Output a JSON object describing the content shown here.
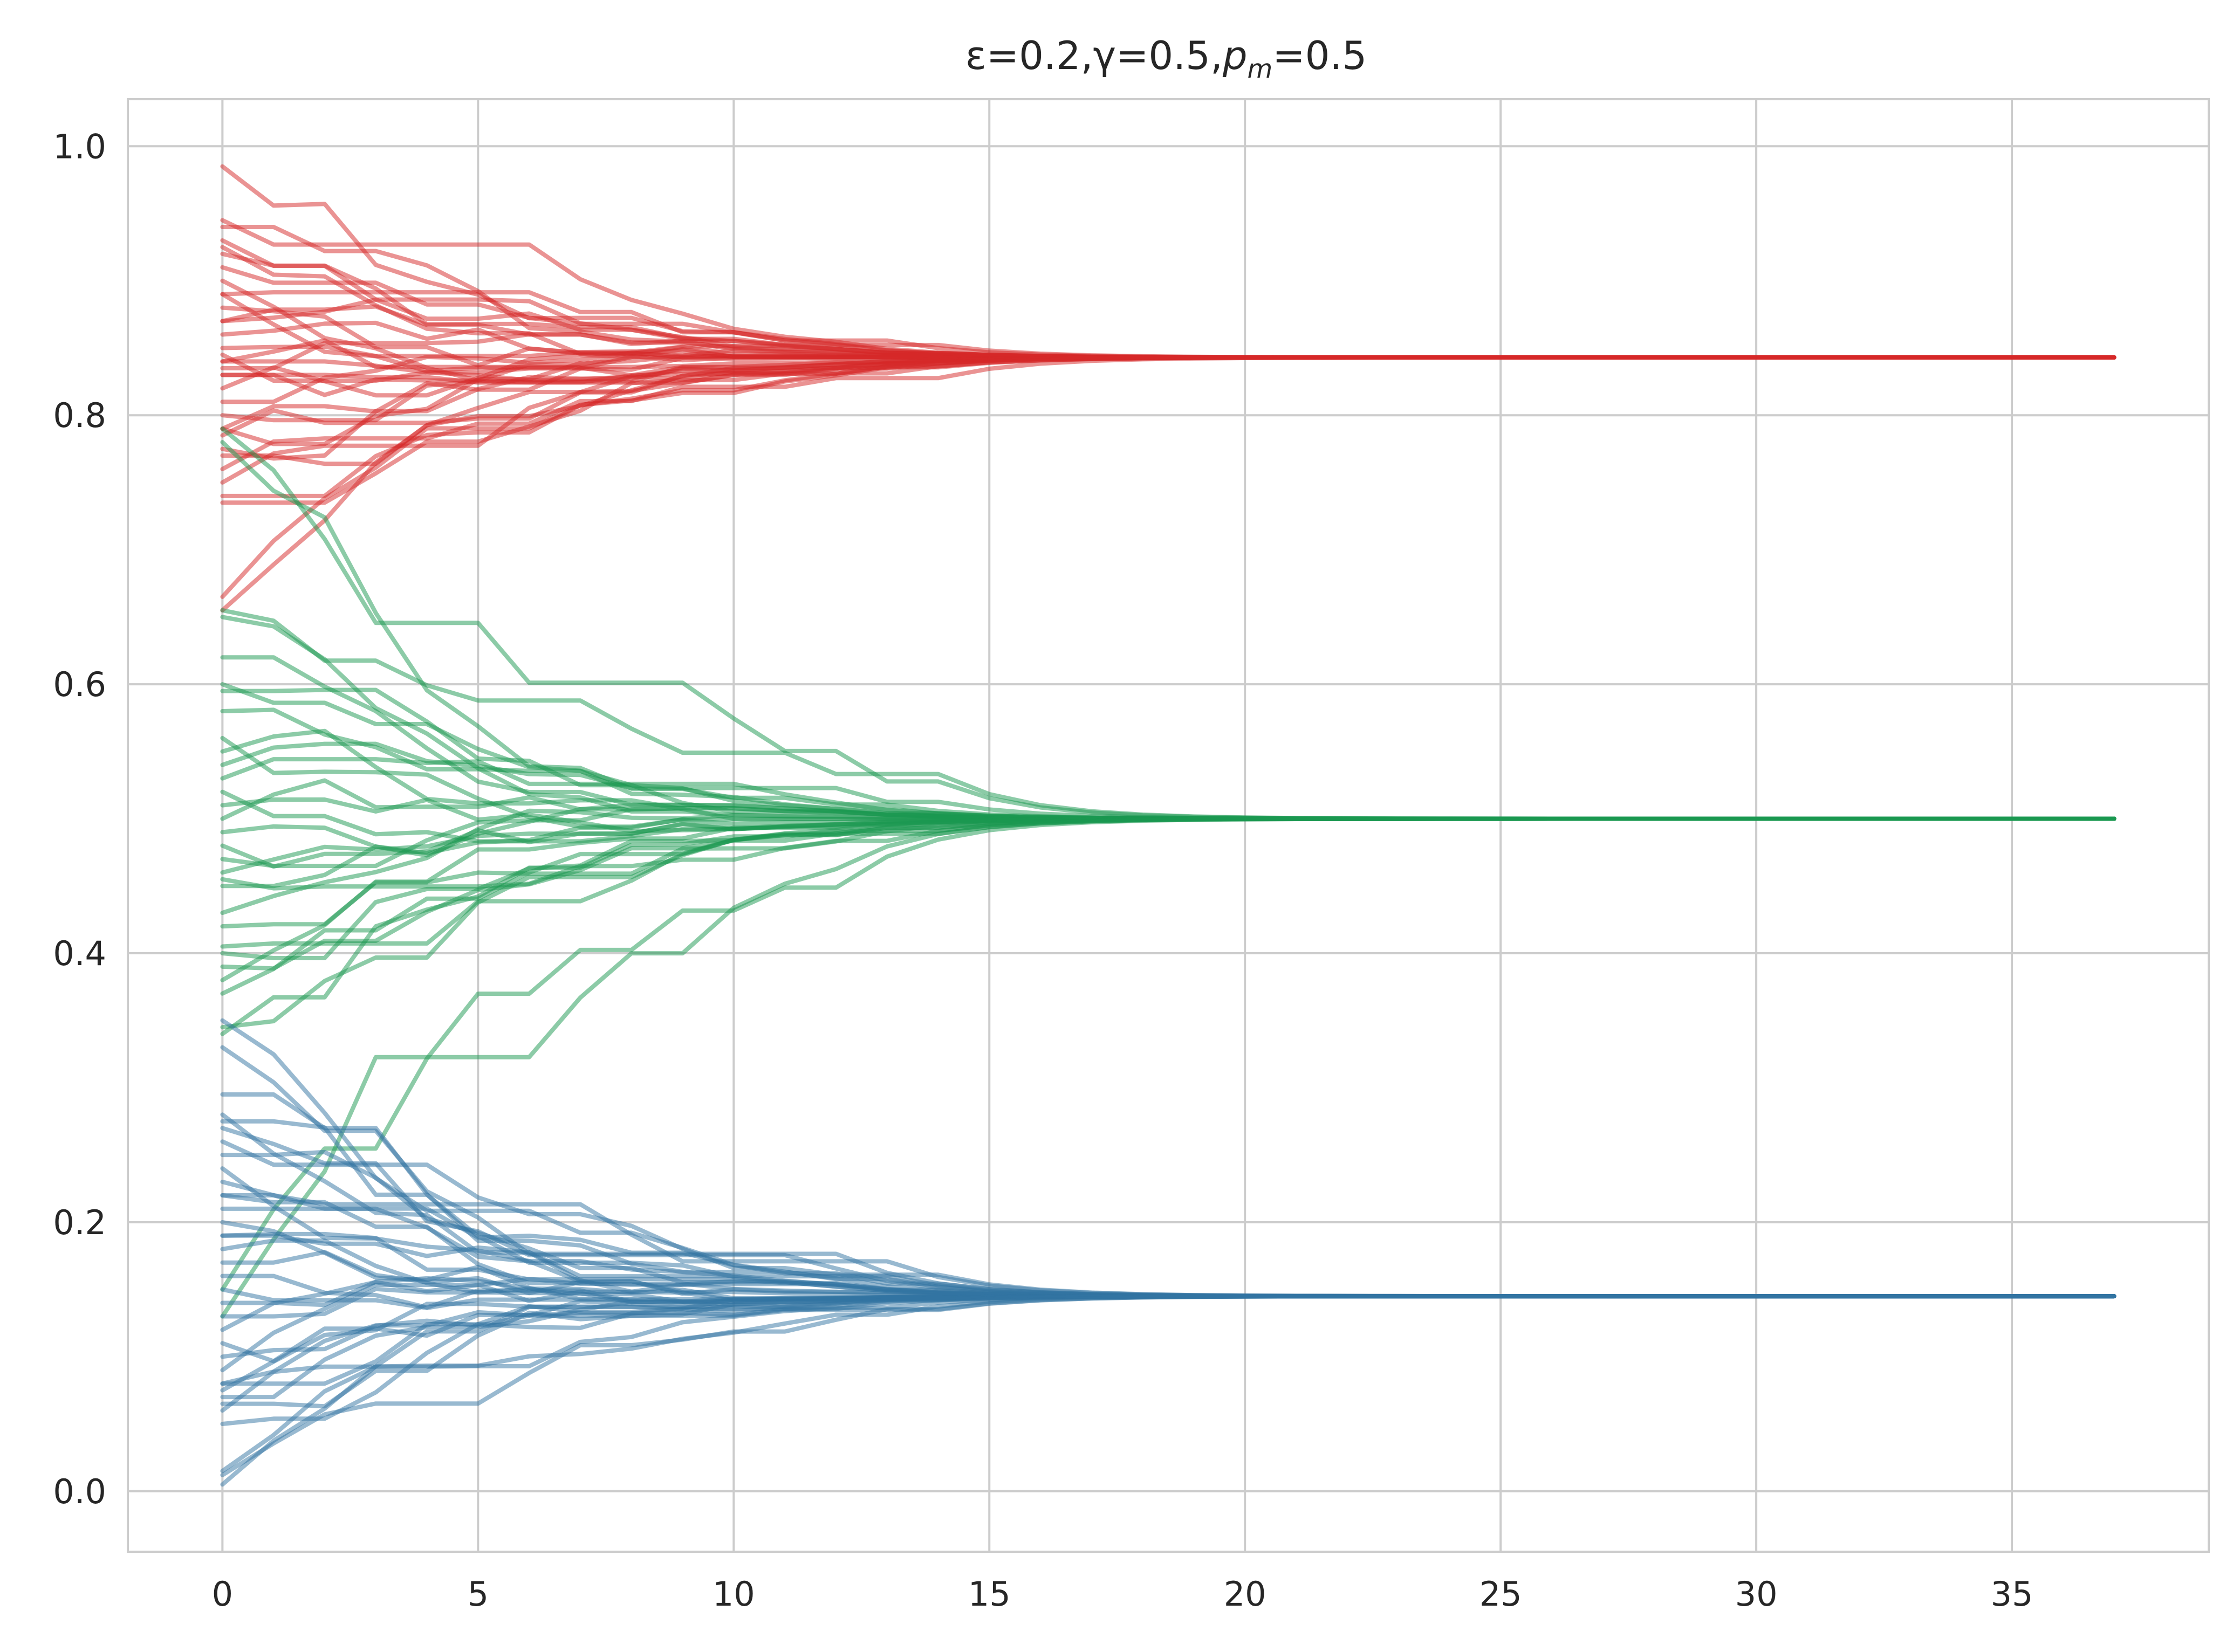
{
  "chart_data": {
    "type": "line",
    "title": "ε=0.2,γ=0.5,p_m=0.5",
    "title_parts": [
      "ε=0.2,γ=0.5,",
      "p",
      "m",
      "=0.5"
    ],
    "xlabel": "",
    "ylabel": "",
    "xlim": [
      -1.85,
      38.85
    ],
    "ylim": [
      -0.045,
      1.035
    ],
    "xticks": [
      0,
      5,
      10,
      15,
      20,
      25,
      30,
      35
    ],
    "xtick_labels": [
      "0",
      "5",
      "10",
      "15",
      "20",
      "25",
      "30",
      "35"
    ],
    "yticks": [
      0.0,
      0.2,
      0.4,
      0.6,
      0.8,
      1.0
    ],
    "ytick_labels": [
      "0.0",
      "0.2",
      "0.4",
      "0.6",
      "0.8",
      "1.0"
    ],
    "grid": true,
    "legend": "none",
    "x_end": 37,
    "colors": {
      "red": "#d62728",
      "green": "#1a9850",
      "blue": "#3274a1"
    },
    "groups": [
      {
        "color": "red",
        "final": 0.843,
        "initial": [
          0.985,
          0.945,
          0.94,
          0.93,
          0.925,
          0.92,
          0.91,
          0.9,
          0.89,
          0.88,
          0.87,
          0.86,
          0.85,
          0.845,
          0.84,
          0.835,
          0.83,
          0.82,
          0.81,
          0.8,
          0.79,
          0.785,
          0.775,
          0.77,
          0.76,
          0.75,
          0.74,
          0.735,
          0.665,
          0.655,
          0.89,
          0.84,
          0.83,
          0.79,
          0.87
        ]
      },
      {
        "color": "green",
        "final": 0.5,
        "initial": [
          0.655,
          0.65,
          0.62,
          0.6,
          0.595,
          0.58,
          0.56,
          0.55,
          0.54,
          0.53,
          0.52,
          0.51,
          0.5,
          0.49,
          0.48,
          0.47,
          0.46,
          0.455,
          0.45,
          0.43,
          0.42,
          0.405,
          0.4,
          0.39,
          0.38,
          0.37,
          0.345,
          0.34,
          0.79,
          0.78,
          0.15,
          0.13
        ]
      },
      {
        "color": "blue",
        "final": 0.145,
        "initial": [
          0.295,
          0.275,
          0.27,
          0.26,
          0.25,
          0.24,
          0.23,
          0.22,
          0.21,
          0.2,
          0.19,
          0.18,
          0.17,
          0.16,
          0.15,
          0.14,
          0.13,
          0.12,
          0.11,
          0.1,
          0.09,
          0.08,
          0.075,
          0.07,
          0.065,
          0.06,
          0.05,
          0.015,
          0.012,
          0.005,
          0.33,
          0.35,
          0.28,
          0.22,
          0.19,
          0.08
        ]
      }
    ]
  }
}
